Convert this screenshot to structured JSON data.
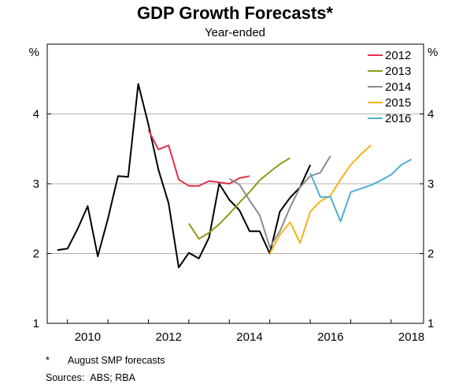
{
  "title": "GDP Growth Forecasts*",
  "subtitle": "Year-ended",
  "footnote": {
    "mark": "*",
    "text": "August SMP forecasts"
  },
  "sources": {
    "label": "Sources:",
    "text": "ABS; RBA"
  },
  "colors": {
    "actual": "#000000",
    "2012": "#e2324a",
    "2013": "#8f9a12",
    "2014": "#8c8c8c",
    "2015": "#f4b41a",
    "2016": "#4cb0d8",
    "grid": "#b0b0b0"
  },
  "chart_data": {
    "type": "line",
    "title": "GDP Growth Forecasts*",
    "subtitle": "Year-ended",
    "ylabel_left": "%",
    "ylabel_right": "%",
    "ylim": [
      1,
      5
    ],
    "yticks": [
      1,
      2,
      3,
      4
    ],
    "xlim": [
      2009.5,
      2018.8
    ],
    "xticks": [
      2010,
      2012,
      2014,
      2016,
      2018
    ],
    "grid": "horizontal",
    "legend_position": "top-right",
    "series": [
      {
        "name": "",
        "key": "actual",
        "x": [
          2009.75,
          2010.0,
          2010.25,
          2010.5,
          2010.75,
          2011.0,
          2011.25,
          2011.5,
          2011.75,
          2012.0,
          2012.25,
          2012.5,
          2012.75,
          2013.0,
          2013.25,
          2013.5,
          2013.75,
          2014.0,
          2014.25,
          2014.5,
          2014.75,
          2015.0,
          2015.25,
          2015.5,
          2015.75,
          2016.0
        ],
        "values": [
          2.05,
          2.07,
          2.35,
          2.68,
          1.96,
          2.5,
          3.11,
          3.1,
          4.43,
          3.85,
          3.2,
          2.72,
          1.8,
          2.01,
          1.93,
          2.23,
          3.0,
          2.77,
          2.62,
          2.32,
          2.32,
          2.0,
          2.6,
          2.8,
          2.95,
          3.27
        ]
      },
      {
        "name": "2012",
        "key": "2012",
        "x": [
          2012.0,
          2012.25,
          2012.5,
          2012.75,
          2013.0,
          2013.25,
          2013.5,
          2013.75,
          2014.0,
          2014.25,
          2014.5
        ],
        "values": [
          3.77,
          3.49,
          3.55,
          3.06,
          2.97,
          2.97,
          3.04,
          3.02,
          3.0,
          3.08,
          3.11
        ]
      },
      {
        "name": "2013",
        "key": "2013",
        "x": [
          2013.0,
          2013.25,
          2013.5,
          2013.75,
          2014.0,
          2014.25,
          2014.5,
          2014.75,
          2015.0,
          2015.25,
          2015.5
        ],
        "values": [
          2.43,
          2.21,
          2.3,
          2.42,
          2.57,
          2.73,
          2.88,
          3.05,
          3.17,
          3.28,
          3.37
        ]
      },
      {
        "name": "2014",
        "key": "2014",
        "x": [
          2014.0,
          2014.25,
          2014.5,
          2014.75,
          2015.0,
          2015.25,
          2015.5,
          2015.75,
          2016.0,
          2016.25,
          2016.5
        ],
        "values": [
          3.07,
          2.99,
          2.76,
          2.55,
          2.09,
          2.32,
          2.66,
          2.95,
          3.11,
          3.16,
          3.4
        ]
      },
      {
        "name": "2015",
        "key": "2015",
        "x": [
          2015.0,
          2015.25,
          2015.5,
          2015.75,
          2016.0,
          2016.25,
          2016.5,
          2016.75,
          2017.0,
          2017.25,
          2017.5
        ],
        "values": [
          2.0,
          2.27,
          2.45,
          2.15,
          2.6,
          2.75,
          2.83,
          3.06,
          3.27,
          3.42,
          3.55
        ]
      },
      {
        "name": "2016",
        "key": "2016",
        "x": [
          2016.0,
          2016.25,
          2016.5,
          2016.75,
          2017.0,
          2017.25,
          2017.5,
          2017.75,
          2018.0,
          2018.25,
          2018.5
        ],
        "values": [
          3.15,
          2.81,
          2.81,
          2.46,
          2.88,
          2.93,
          2.98,
          3.05,
          3.13,
          3.27,
          3.35
        ]
      }
    ]
  }
}
